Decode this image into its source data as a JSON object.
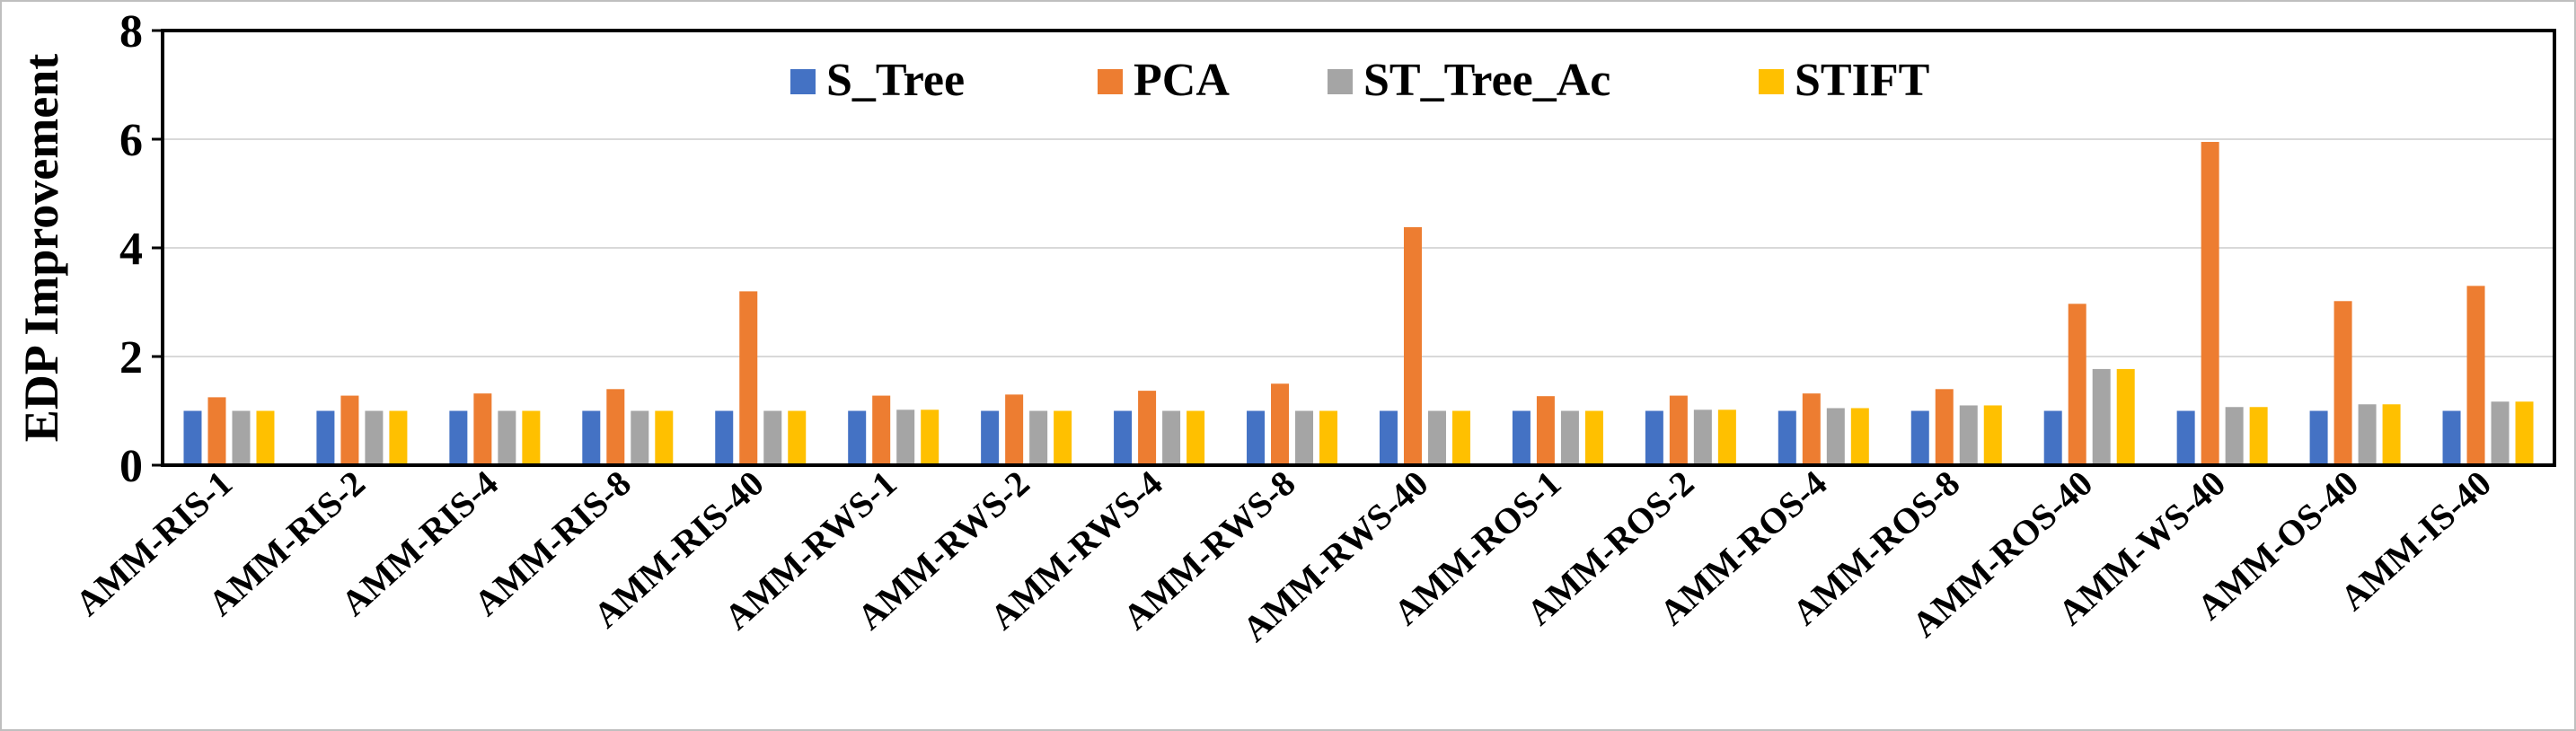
{
  "chart_data": {
    "type": "bar",
    "title": "",
    "xlabel": "",
    "ylabel": "EDP Improvement",
    "ylim": [
      0,
      8
    ],
    "yticks": [
      0,
      2,
      4,
      6,
      8
    ],
    "grid": true,
    "legend_position": "top-center",
    "categories": [
      "AMM-RIS-1",
      "AMM-RIS-2",
      "AMM-RIS-4",
      "AMM-RIS-8",
      "AMM-RIS-40",
      "AMM-RWS-1",
      "AMM-RWS-2",
      "AMM-RWS-4",
      "AMM-RWS-8",
      "AMM-RWS-40",
      "AMM-ROS-1",
      "AMM-ROS-2",
      "AMM-ROS-4",
      "AMM-ROS-8",
      "AMM-ROS-40",
      "AMM-WS-40",
      "AMM-OS-40",
      "AMM-IS-40"
    ],
    "series": [
      {
        "name": "S_Tree",
        "color": "#4472C4",
        "values": [
          1,
          1,
          1,
          1,
          1,
          1,
          1,
          1,
          1,
          1,
          1,
          1,
          1,
          1,
          1,
          1,
          1,
          1
        ]
      },
      {
        "name": "PCA",
        "color": "#ED7D31",
        "values": [
          1.25,
          1.28,
          1.32,
          1.4,
          3.2,
          1.28,
          1.3,
          1.37,
          1.5,
          4.38,
          1.27,
          1.28,
          1.32,
          1.4,
          2.97,
          5.95,
          3.02,
          3.3
        ]
      },
      {
        "name": "ST_Tree_Ac",
        "color": "#A5A5A5",
        "values": [
          1,
          1,
          1,
          1,
          1,
          1.02,
          1,
          1,
          1,
          1,
          1,
          1.02,
          1.05,
          1.1,
          1.77,
          1.07,
          1.12,
          1.17
        ]
      },
      {
        "name": "STIFT",
        "color": "#FFC000",
        "values": [
          1,
          1,
          1,
          1,
          1,
          1.02,
          1,
          1,
          1,
          1,
          1,
          1.02,
          1.05,
          1.1,
          1.77,
          1.07,
          1.12,
          1.17
        ]
      }
    ]
  }
}
